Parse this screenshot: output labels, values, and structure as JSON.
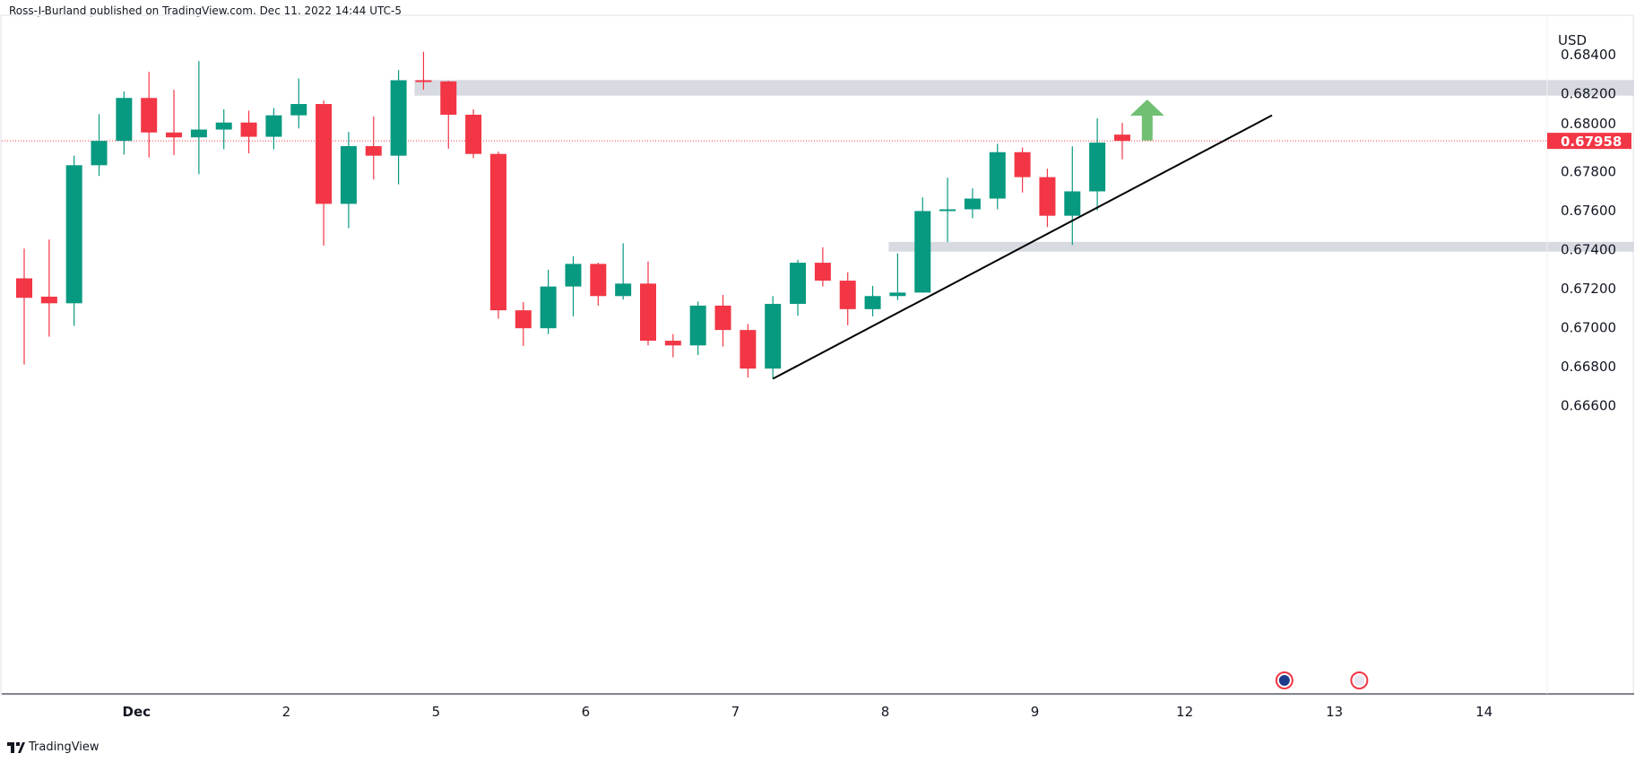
{
  "header": {
    "attribution": "Ross-J-Burland published on TradingView.com, Dec 11, 2022 14:44 UTC-5"
  },
  "footer": {
    "logo_text": "TradingView"
  },
  "colors": {
    "up": "#089981",
    "down": "#f23645",
    "zone": "#d1d4dc",
    "arrow": "#4caf50",
    "trendline": "#000000"
  },
  "chart_data": {
    "type": "candlestick",
    "currency_label": "USD",
    "ylim": [
      0.6652,
      0.6851
    ],
    "y_ticks": [
      "0.68400",
      "0.68200",
      "0.68000",
      "0.67800",
      "0.67600",
      "0.67400",
      "0.67200",
      "0.67000",
      "0.66800",
      "0.66600"
    ],
    "y_tick_values": [
      0.684,
      0.682,
      0.68,
      0.678,
      0.676,
      0.674,
      0.672,
      0.67,
      0.668,
      0.666
    ],
    "x_ticks": [
      {
        "label": "Dec",
        "index": 6
      },
      {
        "label": "2",
        "index": 12
      },
      {
        "label": "5",
        "index": 18
      },
      {
        "label": "6",
        "index": 24
      },
      {
        "label": "7",
        "index": 30
      },
      {
        "label": "8",
        "index": 36
      },
      {
        "label": "9",
        "index": 42
      },
      {
        "label": "12",
        "index": 48
      },
      {
        "label": "13",
        "index": 54
      },
      {
        "label": "14",
        "index": 60
      }
    ],
    "last_price": "0.67958",
    "candles": [
      [
        0.67253,
        0.67406,
        0.66811,
        0.67153
      ],
      [
        0.67159,
        0.67452,
        0.66954,
        0.67125
      ],
      [
        0.67125,
        0.67882,
        0.67009,
        0.67833
      ],
      [
        0.67833,
        0.68095,
        0.67778,
        0.67958
      ],
      [
        0.67958,
        0.68211,
        0.67888,
        0.68178
      ],
      [
        0.68178,
        0.68312,
        0.67873,
        0.68001
      ],
      [
        0.68001,
        0.6822,
        0.67885,
        0.67976
      ],
      [
        0.67976,
        0.68367,
        0.67787,
        0.68016
      ],
      [
        0.68016,
        0.6812,
        0.67915,
        0.68052
      ],
      [
        0.68052,
        0.68113,
        0.67894,
        0.67979
      ],
      [
        0.67979,
        0.68126,
        0.67915,
        0.68089
      ],
      [
        0.68089,
        0.68278,
        0.68022,
        0.68147
      ],
      [
        0.68147,
        0.68165,
        0.67421,
        0.67635
      ],
      [
        0.67635,
        0.68004,
        0.6751,
        0.67931
      ],
      [
        0.67931,
        0.68083,
        0.6776,
        0.67882
      ],
      [
        0.67882,
        0.68321,
        0.67735,
        0.68269
      ],
      [
        0.68269,
        0.68415,
        0.6822,
        0.68263
      ],
      [
        0.68263,
        0.68266,
        0.67918,
        0.68092
      ],
      [
        0.68092,
        0.6812,
        0.67869,
        0.67891
      ],
      [
        0.67891,
        0.67903,
        0.67046,
        0.67089
      ],
      [
        0.67089,
        0.67131,
        0.66906,
        0.66997
      ],
      [
        0.66997,
        0.67296,
        0.66967,
        0.67211
      ],
      [
        0.67211,
        0.67366,
        0.67058,
        0.67327
      ],
      [
        0.67327,
        0.67333,
        0.67113,
        0.67162
      ],
      [
        0.67162,
        0.67433,
        0.67144,
        0.67226
      ],
      [
        0.67226,
        0.67339,
        0.66909,
        0.66933
      ],
      [
        0.66933,
        0.66967,
        0.66848,
        0.66909
      ],
      [
        0.66909,
        0.67134,
        0.6686,
        0.67113
      ],
      [
        0.67113,
        0.67168,
        0.66903,
        0.66988
      ],
      [
        0.66988,
        0.67019,
        0.66744,
        0.6679
      ],
      [
        0.6679,
        0.67162,
        0.66738,
        0.67122
      ],
      [
        0.67122,
        0.67348,
        0.67061,
        0.67333
      ],
      [
        0.67333,
        0.67412,
        0.67211,
        0.67241
      ],
      [
        0.67241,
        0.67284,
        0.67012,
        0.67095
      ],
      [
        0.67095,
        0.67214,
        0.67058,
        0.67162
      ],
      [
        0.67162,
        0.67381,
        0.67141,
        0.6718
      ],
      [
        0.6718,
        0.67668,
        0.6718,
        0.67598
      ],
      [
        0.67601,
        0.67769,
        0.67439,
        0.67607
      ],
      [
        0.67607,
        0.67714,
        0.67561,
        0.67662
      ],
      [
        0.67662,
        0.67943,
        0.67607,
        0.679
      ],
      [
        0.679,
        0.67924,
        0.67693,
        0.67772
      ],
      [
        0.67772,
        0.67815,
        0.67516,
        0.67574
      ],
      [
        0.67574,
        0.6793,
        0.67424,
        0.67699
      ],
      [
        0.67699,
        0.68074,
        0.67601,
        0.67949
      ],
      [
        0.6799,
        0.6805,
        0.67863,
        0.67958
      ]
    ],
    "candle_fields": [
      "open",
      "high",
      "low",
      "close"
    ],
    "zones": [
      {
        "from_index": 17,
        "to_index": 65.5,
        "low": 0.6819,
        "high": 0.6827
      },
      {
        "from_index": 36,
        "to_index": 65.5,
        "low": 0.6739,
        "high": 0.6744
      }
    ],
    "trendline": {
      "start": {
        "index": 31,
        "price": 0.66738
      },
      "end": {
        "index": 51,
        "price": 0.68089
      }
    },
    "arrow": {
      "index": 46,
      "from": 0.6796,
      "to": 0.6817,
      "direction": "up"
    },
    "event_markers": [
      {
        "index": 52,
        "icon": "australia-flag-icon"
      },
      {
        "index": 55,
        "icon": "usa-flag-icon"
      }
    ]
  }
}
